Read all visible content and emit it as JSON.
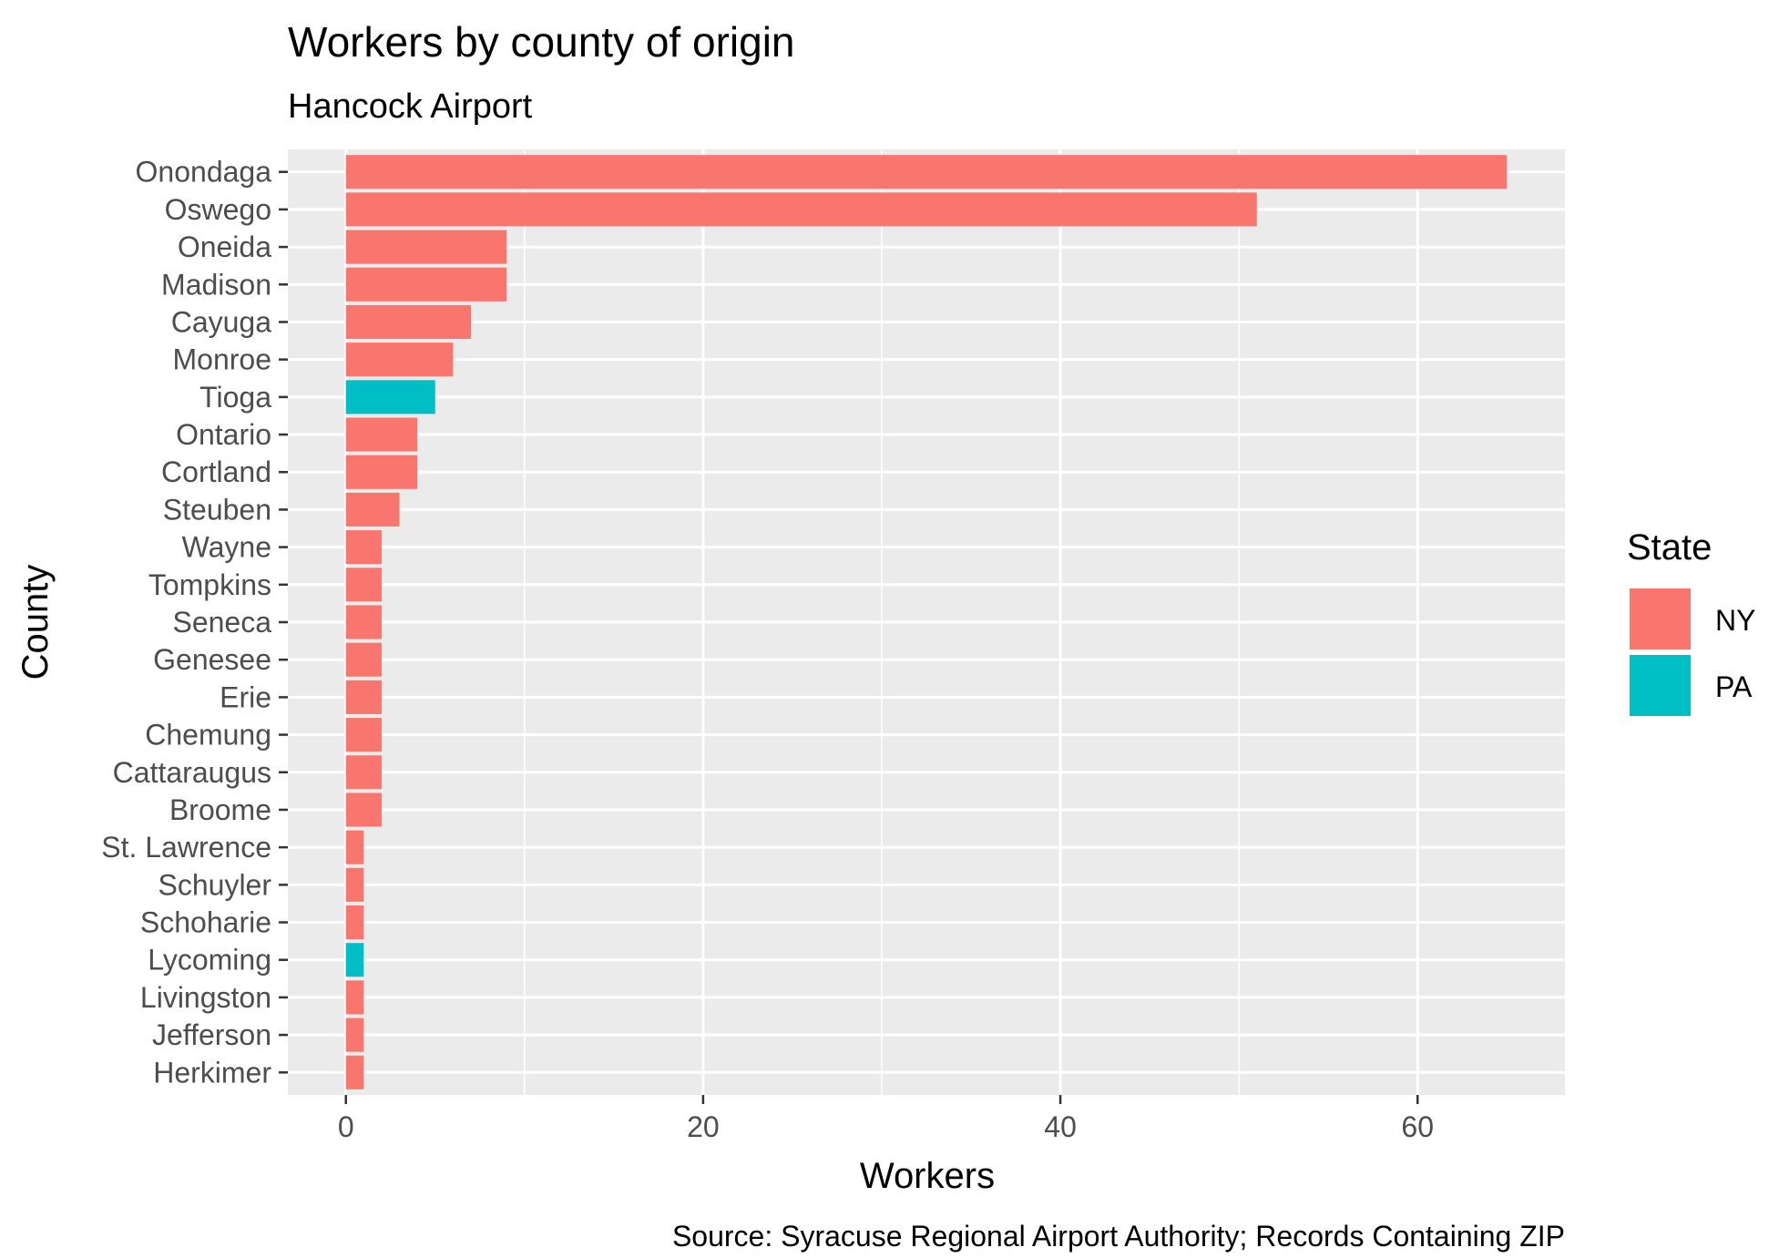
{
  "chart_data": {
    "type": "bar",
    "orientation": "horizontal",
    "title": "Workers by county of origin",
    "subtitle": "Hancock Airport",
    "xlabel": "Workers",
    "ylabel": "County",
    "caption": "Source: Syracuse Regional Airport Authority; Records Containing ZIP",
    "xlim": [
      -3.25,
      68.25
    ],
    "xticks": [
      0,
      20,
      40,
      60
    ],
    "grid": true,
    "legend": {
      "title": "State",
      "position": "right",
      "entries": [
        {
          "label": "NY",
          "color": "#F8766D"
        },
        {
          "label": "PA",
          "color": "#00BFC4"
        }
      ]
    },
    "categories": [
      "Onondaga",
      "Oswego",
      "Oneida",
      "Madison",
      "Cayuga",
      "Monroe",
      "Tioga",
      "Ontario",
      "Cortland",
      "Steuben",
      "Wayne",
      "Tompkins",
      "Seneca",
      "Genesee",
      "Erie",
      "Chemung",
      "Cattaraugus",
      "Broome",
      "St. Lawrence",
      "Schuyler",
      "Schoharie",
      "Lycoming",
      "Livingston",
      "Jefferson",
      "Herkimer"
    ],
    "values": [
      65,
      51,
      9,
      9,
      7,
      6,
      5,
      4,
      4,
      3,
      2,
      2,
      2,
      2,
      2,
      2,
      2,
      2,
      1,
      1,
      1,
      1,
      1,
      1,
      1
    ],
    "states": [
      "NY",
      "NY",
      "NY",
      "NY",
      "NY",
      "NY",
      "PA",
      "NY",
      "NY",
      "NY",
      "NY",
      "NY",
      "NY",
      "NY",
      "NY",
      "NY",
      "NY",
      "NY",
      "NY",
      "NY",
      "NY",
      "PA",
      "NY",
      "NY",
      "NY"
    ]
  },
  "colors": {
    "panel_background": "#EBEBEB",
    "grid": "#FFFFFF",
    "tick_text": "#4D4D4D",
    "tick_mark": "#333333"
  }
}
